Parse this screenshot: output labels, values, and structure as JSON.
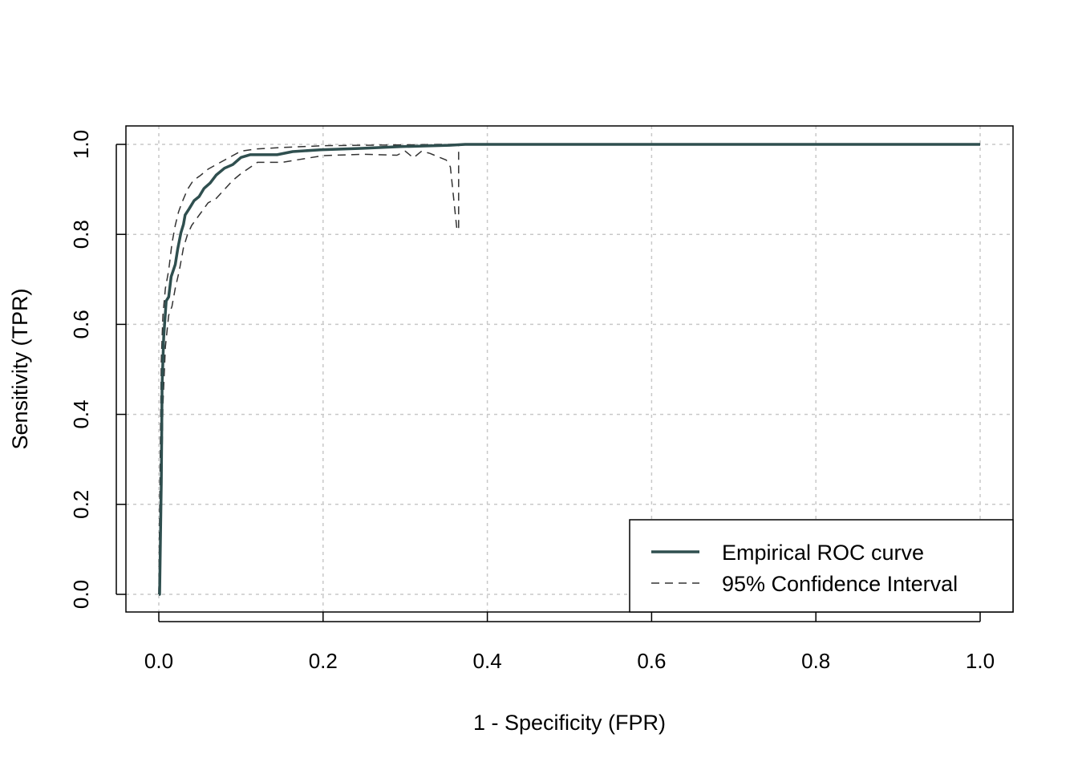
{
  "chart_data": {
    "type": "line",
    "title": "",
    "xlabel": "1 - Specificity (FPR)",
    "ylabel": "Sensitivity (TPR)",
    "xlim": [
      0,
      1
    ],
    "ylim": [
      0,
      1
    ],
    "xticks": [
      "0.0",
      "0.2",
      "0.4",
      "0.6",
      "0.8",
      "1.0"
    ],
    "yticks": [
      "0.0",
      "0.2",
      "0.4",
      "0.6",
      "0.8",
      "1.0"
    ],
    "grid": true,
    "legend_position": "bottom-right",
    "colors": {
      "roc": "#2f4f4f",
      "ci": "#333333",
      "grid": "#c8c8c8"
    },
    "series": [
      {
        "name": "Empirical ROC curve",
        "style": "solid",
        "x": [
          0,
          0.001,
          0.003,
          0.004,
          0.006,
          0.009,
          0.012,
          0.015,
          0.02,
          0.023,
          0.027,
          0.03,
          0.032,
          0.037,
          0.043,
          0.049,
          0.055,
          0.0625,
          0.07,
          0.08,
          0.09,
          0.1,
          0.111,
          0.144,
          0.163,
          0.197,
          0.246,
          0.295,
          0.354,
          0.373,
          1
        ],
        "y": [
          0,
          0,
          0.251,
          0.465,
          0.572,
          0.652,
          0.661,
          0.706,
          0.733,
          0.768,
          0.804,
          0.822,
          0.843,
          0.857,
          0.875,
          0.884,
          0.902,
          0.914,
          0.932,
          0.947,
          0.955,
          0.971,
          0.977,
          0.977,
          0.984,
          0.988,
          0.991,
          0.995,
          0.998,
          1,
          1
        ]
      },
      {
        "name": "95% Confidence Interval (upper)",
        "style": "dashed",
        "x": [
          0,
          0.002,
          0.003,
          0.005,
          0.008,
          0.012,
          0.016,
          0.02,
          0.024,
          0.028,
          0.035,
          0.042,
          0.05,
          0.06,
          0.07,
          0.08,
          0.09,
          0.1,
          0.12,
          0.15,
          0.2,
          0.25,
          0.3,
          0.35,
          0.365,
          1
        ],
        "y": [
          0,
          0.35,
          0.52,
          0.62,
          0.68,
          0.72,
          0.78,
          0.82,
          0.85,
          0.87,
          0.9,
          0.92,
          0.93,
          0.945,
          0.955,
          0.965,
          0.975,
          0.985,
          0.99,
          0.993,
          0.997,
          0.998,
          0.999,
          1,
          1,
          1
        ]
      },
      {
        "name": "95% Confidence Interval (lower)",
        "style": "dashed",
        "x": [
          0,
          0.003,
          0.005,
          0.008,
          0.012,
          0.016,
          0.02,
          0.025,
          0.03,
          0.035,
          0.04,
          0.05,
          0.06,
          0.07,
          0.08,
          0.09,
          0.1,
          0.12,
          0.15,
          0.2,
          0.25,
          0.29,
          0.3,
          0.31,
          0.32,
          0.33,
          0.35,
          0.355,
          0.363,
          0.365,
          0.365,
          1
        ],
        "y": [
          0,
          0.2,
          0.42,
          0.55,
          0.62,
          0.64,
          0.68,
          0.72,
          0.77,
          0.8,
          0.82,
          0.845,
          0.87,
          0.88,
          0.9,
          0.92,
          0.935,
          0.96,
          0.96,
          0.975,
          0.978,
          0.976,
          0.985,
          0.97,
          0.985,
          0.98,
          0.965,
          0.95,
          0.81,
          0.81,
          1,
          1
        ]
      }
    ],
    "legend": [
      "Empirical ROC curve",
      "95% Confidence Interval"
    ]
  }
}
